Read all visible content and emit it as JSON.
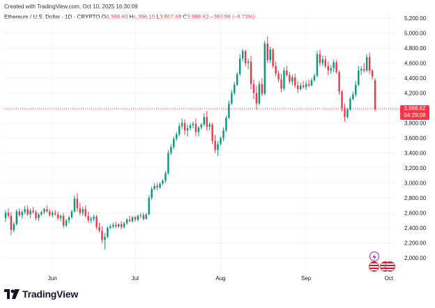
{
  "header": {
    "created": "Created with TradingView.com, Oct 10, 2025 16:30:09",
    "symbol": "Ethereum / U.S. Dollar · 1D · CRYPTO",
    "open_label": "O",
    "open": "4,369.60",
    "high_label": "H",
    "high": "4,396.15",
    "low_label": "L",
    "low": "3,957.68",
    "close_label": "C",
    "close": "3,988.62",
    "change": "−380.98 (−8.72%)"
  },
  "price_tag": {
    "price": "3,988.62",
    "countdown": "04:29:08"
  },
  "logo": {
    "text": "TradingView",
    "icon": "tradingview-logo-icon"
  },
  "colors": {
    "up": "#089981",
    "down": "#f23645",
    "grid": "#f0f3fa",
    "price_line": "#f23645"
  },
  "chart_data": {
    "type": "candlestick",
    "ylim": [
      1900,
      5300
    ],
    "y_ticks": [
      "2,000.00",
      "2,200.00",
      "2,400.00",
      "2,600.00",
      "2,800.00",
      "3,000.00",
      "3,200.00",
      "3,400.00",
      "3,600.00",
      "3,800.00",
      "4,000.00",
      "4,200.00",
      "4,400.00",
      "4,600.00",
      "4,800.00",
      "5,000.00",
      "5,200.00"
    ],
    "x_ticks": [
      {
        "label": "Jun",
        "index": 17
      },
      {
        "label": "Jul",
        "index": 47
      },
      {
        "label": "Aug",
        "index": 78
      },
      {
        "label": "Sep",
        "index": 109
      },
      {
        "label": "Oct",
        "index": 139
      }
    ],
    "last_price": 3988.62,
    "candles": [
      [
        2530,
        2640,
        2480,
        2600
      ],
      [
        2600,
        2660,
        2530,
        2560
      ],
      [
        2560,
        2610,
        2300,
        2370
      ],
      [
        2370,
        2480,
        2340,
        2450
      ],
      [
        2450,
        2650,
        2430,
        2620
      ],
      [
        2620,
        2660,
        2550,
        2570
      ],
      [
        2570,
        2640,
        2520,
        2610
      ],
      [
        2610,
        2690,
        2580,
        2650
      ],
      [
        2650,
        2700,
        2560,
        2580
      ],
      [
        2580,
        2660,
        2530,
        2630
      ],
      [
        2630,
        2680,
        2590,
        2610
      ],
      [
        2610,
        2640,
        2500,
        2530
      ],
      [
        2530,
        2600,
        2490,
        2580
      ],
      [
        2580,
        2630,
        2560,
        2610
      ],
      [
        2610,
        2670,
        2580,
        2650
      ],
      [
        2650,
        2700,
        2600,
        2620
      ],
      [
        2620,
        2650,
        2550,
        2570
      ],
      [
        2570,
        2630,
        2540,
        2600
      ],
      [
        2600,
        2640,
        2560,
        2580
      ],
      [
        2580,
        2620,
        2510,
        2530
      ],
      [
        2530,
        2580,
        2490,
        2560
      ],
      [
        2560,
        2600,
        2400,
        2430
      ],
      [
        2430,
        2520,
        2410,
        2500
      ],
      [
        2500,
        2560,
        2460,
        2540
      ],
      [
        2540,
        2640,
        2520,
        2620
      ],
      [
        2620,
        2830,
        2600,
        2790
      ],
      [
        2790,
        2860,
        2620,
        2660
      ],
      [
        2660,
        2740,
        2570,
        2600
      ],
      [
        2600,
        2680,
        2560,
        2650
      ],
      [
        2650,
        2700,
        2540,
        2560
      ],
      [
        2560,
        2620,
        2470,
        2500
      ],
      [
        2500,
        2550,
        2460,
        2520
      ],
      [
        2520,
        2580,
        2490,
        2550
      ],
      [
        2550,
        2570,
        2380,
        2410
      ],
      [
        2410,
        2470,
        2340,
        2360
      ],
      [
        2360,
        2420,
        2200,
        2240
      ],
      [
        2240,
        2330,
        2110,
        2280
      ],
      [
        2280,
        2420,
        2260,
        2400
      ],
      [
        2400,
        2450,
        2380,
        2420
      ],
      [
        2420,
        2470,
        2390,
        2440
      ],
      [
        2440,
        2480,
        2400,
        2420
      ],
      [
        2420,
        2460,
        2400,
        2450
      ],
      [
        2450,
        2490,
        2380,
        2410
      ],
      [
        2410,
        2480,
        2390,
        2460
      ],
      [
        2460,
        2530,
        2440,
        2510
      ],
      [
        2510,
        2560,
        2480,
        2490
      ],
      [
        2490,
        2560,
        2470,
        2540
      ],
      [
        2540,
        2560,
        2480,
        2510
      ],
      [
        2510,
        2580,
        2490,
        2560
      ],
      [
        2560,
        2600,
        2530,
        2570
      ],
      [
        2570,
        2600,
        2500,
        2520
      ],
      [
        2520,
        2600,
        2510,
        2580
      ],
      [
        2580,
        2840,
        2570,
        2800
      ],
      [
        2800,
        2950,
        2770,
        2920
      ],
      [
        2920,
        3000,
        2900,
        2960
      ],
      [
        2960,
        3000,
        2900,
        2940
      ],
      [
        2940,
        3010,
        2920,
        2990
      ],
      [
        2990,
        3050,
        2970,
        3030
      ],
      [
        3030,
        3160,
        3000,
        3130
      ],
      [
        3130,
        3440,
        3110,
        3400
      ],
      [
        3400,
        3520,
        3370,
        3480
      ],
      [
        3480,
        3620,
        3450,
        3590
      ],
      [
        3590,
        3680,
        3560,
        3650
      ],
      [
        3650,
        3800,
        3620,
        3760
      ],
      [
        3760,
        3860,
        3720,
        3800
      ],
      [
        3800,
        3850,
        3640,
        3700
      ],
      [
        3700,
        3780,
        3620,
        3730
      ],
      [
        3730,
        3800,
        3700,
        3770
      ],
      [
        3770,
        3820,
        3730,
        3790
      ],
      [
        3790,
        3860,
        3620,
        3680
      ],
      [
        3680,
        3760,
        3620,
        3740
      ],
      [
        3740,
        3800,
        3710,
        3780
      ],
      [
        3780,
        3930,
        3760,
        3880
      ],
      [
        3880,
        3960,
        3700,
        3750
      ],
      [
        3750,
        3810,
        3700,
        3780
      ],
      [
        3780,
        3800,
        3520,
        3560
      ],
      [
        3560,
        3640,
        3400,
        3440
      ],
      [
        3440,
        3560,
        3360,
        3520
      ],
      [
        3520,
        3620,
        3500,
        3600
      ],
      [
        3600,
        3740,
        3560,
        3700
      ],
      [
        3700,
        3900,
        3680,
        3870
      ],
      [
        3870,
        4100,
        3850,
        4060
      ],
      [
        4060,
        4240,
        4040,
        4200
      ],
      [
        4200,
        4350,
        4170,
        4310
      ],
      [
        4310,
        4480,
        4290,
        4450
      ],
      [
        4450,
        4720,
        4430,
        4660
      ],
      [
        4660,
        4790,
        4620,
        4760
      ],
      [
        4760,
        4780,
        4560,
        4600
      ],
      [
        4600,
        4660,
        4520,
        4620
      ],
      [
        4620,
        4700,
        4250,
        4320
      ],
      [
        4320,
        4380,
        4120,
        4200
      ],
      [
        4200,
        4300,
        3980,
        4060
      ],
      [
        4060,
        4360,
        4040,
        4320
      ],
      [
        4320,
        4400,
        4160,
        4190
      ],
      [
        4190,
        4900,
        4170,
        4860
      ],
      [
        4860,
        4960,
        4600,
        4640
      ],
      [
        4640,
        4820,
        4600,
        4780
      ],
      [
        4780,
        4800,
        4530,
        4560
      ],
      [
        4560,
        4620,
        4420,
        4460
      ],
      [
        4460,
        4500,
        4340,
        4380
      ],
      [
        4380,
        4460,
        4210,
        4260
      ],
      [
        4260,
        4540,
        4230,
        4500
      ],
      [
        4500,
        4560,
        4420,
        4440
      ],
      [
        4440,
        4480,
        4320,
        4350
      ],
      [
        4350,
        4450,
        4300,
        4410
      ],
      [
        4410,
        4460,
        4270,
        4300
      ],
      [
        4300,
        4360,
        4200,
        4250
      ],
      [
        4250,
        4340,
        4230,
        4300
      ],
      [
        4300,
        4360,
        4260,
        4280
      ],
      [
        4280,
        4360,
        4240,
        4320
      ],
      [
        4320,
        4380,
        4280,
        4300
      ],
      [
        4300,
        4400,
        4290,
        4370
      ],
      [
        4370,
        4460,
        4350,
        4430
      ],
      [
        4430,
        4760,
        4410,
        4720
      ],
      [
        4720,
        4780,
        4560,
        4600
      ],
      [
        4600,
        4700,
        4560,
        4650
      ],
      [
        4650,
        4700,
        4530,
        4560
      ],
      [
        4560,
        4620,
        4440,
        4500
      ],
      [
        4500,
        4570,
        4460,
        4530
      ],
      [
        4530,
        4640,
        4480,
        4610
      ],
      [
        4610,
        4640,
        4460,
        4480
      ],
      [
        4480,
        4500,
        4180,
        4220
      ],
      [
        4220,
        4240,
        3950,
        4000
      ],
      [
        4000,
        4060,
        3820,
        3880
      ],
      [
        3880,
        4000,
        3860,
        3980
      ],
      [
        3980,
        4150,
        3960,
        4120
      ],
      [
        4120,
        4220,
        4100,
        4180
      ],
      [
        4180,
        4360,
        4150,
        4310
      ],
      [
        4310,
        4560,
        4290,
        4500
      ],
      [
        4500,
        4560,
        4440,
        4520
      ],
      [
        4520,
        4600,
        4470,
        4500
      ],
      [
        4500,
        4720,
        4480,
        4680
      ],
      [
        4680,
        4740,
        4450,
        4500
      ],
      [
        4500,
        4520,
        4380,
        4420
      ],
      [
        4369.6,
        4396.15,
        3957.68,
        3988.62
      ]
    ]
  }
}
